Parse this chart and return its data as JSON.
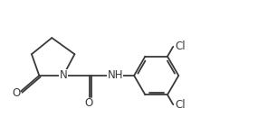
{
  "background": "#ffffff",
  "line_color": "#3a3a3a",
  "line_width": 1.3,
  "font_size_atom": 8.5,
  "figsize": [
    2.85,
    1.4
  ],
  "dpi": 100,
  "xlim": [
    0.0,
    10.2
  ],
  "ylim": [
    0.8,
    4.8
  ]
}
